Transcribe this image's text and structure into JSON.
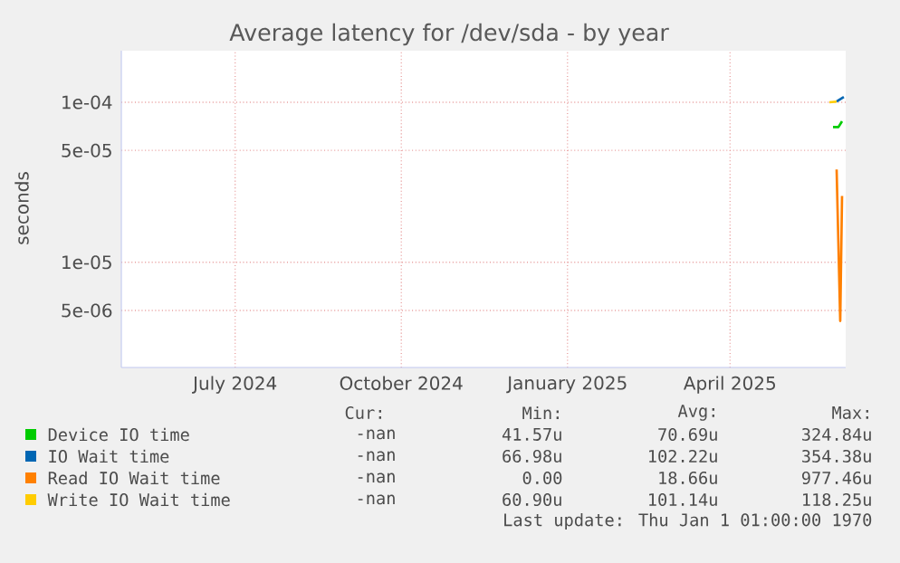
{
  "chart_data": {
    "type": "line",
    "title": "Average latency for /dev/sda - by year",
    "ylabel": "seconds",
    "log": "y",
    "grid": true,
    "legend": "bottom",
    "xlim": [
      "2024-04-29",
      "2025-06-04"
    ],
    "xticks": [
      {
        "value": "2024-07-01",
        "label": "July 2024"
      },
      {
        "value": "2024-10-01",
        "label": "October 2024"
      },
      {
        "value": "2025-01-01",
        "label": "January 2025"
      },
      {
        "value": "2025-04-01",
        "label": "April 2025"
      }
    ],
    "ylim": [
      2.2e-06,
      0.00021
    ],
    "yticks": [
      {
        "value": 0.0001,
        "label": "1e-04"
      },
      {
        "value": 5e-05,
        "label": "5e-05"
      },
      {
        "value": 1e-05,
        "label": "1e-05"
      },
      {
        "value": 5e-06,
        "label": "5e-06"
      }
    ],
    "series": [
      {
        "name": "Device IO time",
        "color": "#00cc00",
        "x": [
          "2025-05-28",
          "2025-05-31",
          "2025-06-02"
        ],
        "values": [
          7e-05,
          7e-05,
          7.6e-05
        ]
      },
      {
        "name": "IO Wait time",
        "color": "#0066b3",
        "x": [
          "2025-05-30",
          "2025-06-03"
        ],
        "values": [
          0.000101,
          0.000108
        ]
      },
      {
        "name": "Read IO Wait time",
        "color": "#ff8000",
        "x": [
          "2025-05-30",
          "2025-06-01",
          "2025-06-02"
        ],
        "values": [
          3.8e-05,
          4.3e-06,
          2.6e-05
        ]
      },
      {
        "name": "Write IO Wait time",
        "color": "#ffcc00",
        "x": [
          "2025-05-26",
          "2025-05-30"
        ],
        "values": [
          0.0001,
          0.000101
        ]
      }
    ],
    "annotations": [
      "Cur:",
      "Min:",
      "Avg:",
      "Max:",
      "-nan",
      "41.57u",
      "70.69u",
      "324.84u",
      "-nan",
      "66.98u",
      "102.22u",
      "354.38u",
      "-nan",
      "0.00",
      "18.66u",
      "977.46u",
      "-nan",
      "60.90u",
      "101.14u",
      "118.25u",
      "Last update: Thu Jan  1 01:00:00 1970"
    ]
  }
}
